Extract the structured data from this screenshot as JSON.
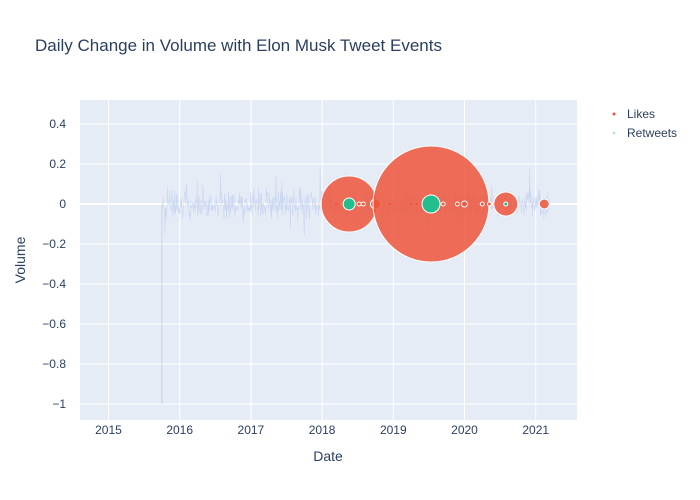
{
  "chart_data": {
    "type": "scatter",
    "title": "Daily Change in Volume with Elon Musk Tweet Events",
    "xlabel": "Date",
    "ylabel": "Volume",
    "xlim": [
      2014.6,
      2021.58
    ],
    "ylim": [
      -1.08,
      0.52
    ],
    "x_ticks": [
      "2015",
      "2016",
      "2017",
      "2018",
      "2019",
      "2020",
      "2021"
    ],
    "y_ticks": [
      "0.4",
      "0.2",
      "0",
      "−0.2",
      "−0.4",
      "−0.6",
      "−0.8",
      "−1"
    ],
    "grid": true,
    "legend_position": "top-right",
    "colors": {
      "likes": "#ef553b",
      "retweets": "#00cc96",
      "volume_line": "#c8d4f0",
      "plot_bg": "#e5ecf6",
      "text": "#2a3f5f"
    },
    "series": [
      {
        "name": "Likes",
        "note": "bubble events; marker area encodes like count (relative)",
        "points": [
          {
            "x": 2017.95,
            "y": 0,
            "size": 1
          },
          {
            "x": 2018.05,
            "y": 0,
            "size": 1
          },
          {
            "x": 2018.2,
            "y": 0,
            "size": 2
          },
          {
            "x": 2018.38,
            "y": 0,
            "size": 28
          },
          {
            "x": 2018.52,
            "y": 0,
            "size": 2
          },
          {
            "x": 2018.58,
            "y": 0,
            "size": 2
          },
          {
            "x": 2018.75,
            "y": 0,
            "size": 5
          },
          {
            "x": 2018.95,
            "y": 0,
            "size": 2
          },
          {
            "x": 2019.25,
            "y": 0,
            "size": 2
          },
          {
            "x": 2019.33,
            "y": 0,
            "size": 2
          },
          {
            "x": 2019.4,
            "y": 0,
            "size": 2
          },
          {
            "x": 2019.53,
            "y": 0,
            "size": 58
          },
          {
            "x": 2019.7,
            "y": 0,
            "size": 2
          },
          {
            "x": 2019.9,
            "y": 0,
            "size": 2
          },
          {
            "x": 2020.0,
            "y": 0,
            "size": 3
          },
          {
            "x": 2020.25,
            "y": 0,
            "size": 2
          },
          {
            "x": 2020.35,
            "y": 0,
            "size": 2
          },
          {
            "x": 2020.42,
            "y": 0,
            "size": 2
          },
          {
            "x": 2020.58,
            "y": 0,
            "size": 12
          },
          {
            "x": 2021.12,
            "y": 0,
            "size": 5
          }
        ]
      },
      {
        "name": "Retweets",
        "note": "bubble events overlaid on daily volume change line",
        "points": [
          {
            "x": 2018.38,
            "y": 0,
            "size": 6
          },
          {
            "x": 2019.53,
            "y": 0,
            "size": 9
          },
          {
            "x": 2020.58,
            "y": 0,
            "size": 2
          }
        ]
      }
    ],
    "volume_line": {
      "x_start": 2015.75,
      "x_end": 2021.2,
      "spike": {
        "x": 2015.75,
        "y": -1.0
      }
    }
  }
}
